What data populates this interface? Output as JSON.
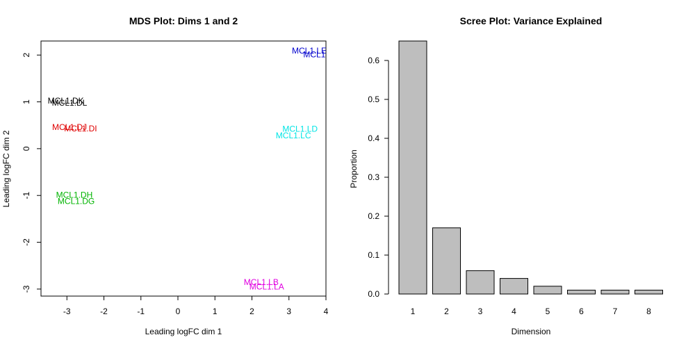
{
  "chart_data": [
    {
      "type": "scatter",
      "title": "MDS Plot: Dims 1 and 2",
      "xlabel": "Leading logFC dim 1",
      "ylabel": "Leading logFC dim 2",
      "xlim": [
        -3.7,
        4.0
      ],
      "ylim": [
        -3.15,
        2.3
      ],
      "xticks": [
        -3,
        -2,
        -1,
        0,
        1,
        2,
        3,
        4
      ],
      "yticks": [
        -3,
        -2,
        -1,
        0,
        1,
        2
      ],
      "grid": false,
      "legend": "none",
      "points": [
        {
          "label": "MCL1.LE",
          "x": 3.55,
          "y": 2.09,
          "color": "#0000CD"
        },
        {
          "label": "MCL1.LF",
          "x": 3.85,
          "y": 2.01,
          "color": "#0000CD"
        },
        {
          "label": "MCL1.DK",
          "x": -3.03,
          "y": 1.02,
          "color": "#000000"
        },
        {
          "label": "MCL1.DL",
          "x": -2.93,
          "y": 0.98,
          "color": "#000000"
        },
        {
          "label": "MCL1.DJ",
          "x": -2.93,
          "y": 0.46,
          "color": "#DF0000"
        },
        {
          "label": "MCL1.DI",
          "x": -2.63,
          "y": 0.43,
          "color": "#DF0000"
        },
        {
          "label": "MCL1.LD",
          "x": 3.3,
          "y": 0.42,
          "color": "#00E5E5"
        },
        {
          "label": "MCL1.LC",
          "x": 3.12,
          "y": 0.28,
          "color": "#00E5E5"
        },
        {
          "label": "MCL1.DH",
          "x": -2.8,
          "y": -0.99,
          "color": "#00B400"
        },
        {
          "label": "MCL1.DG",
          "x": -2.75,
          "y": -1.12,
          "color": "#00B400"
        },
        {
          "label": "MCL1.LB",
          "x": 2.25,
          "y": -2.85,
          "color": "#E000E0"
        },
        {
          "label": "MCL1.LA",
          "x": 2.4,
          "y": -2.95,
          "color": "#E000E0"
        }
      ]
    },
    {
      "type": "bar",
      "title": "Scree Plot: Variance Explained",
      "xlabel": "Dimension",
      "ylabel": "Proportion",
      "categories": [
        "1",
        "2",
        "3",
        "4",
        "5",
        "6",
        "7",
        "8"
      ],
      "values": [
        0.65,
        0.17,
        0.06,
        0.04,
        0.02,
        0.01,
        0.01,
        0.01
      ],
      "ylim": [
        0,
        0.65
      ],
      "yticks": [
        "0.0",
        "0.1",
        "0.2",
        "0.3",
        "0.4",
        "0.5",
        "0.6"
      ],
      "bar_color": "#BEBEBE",
      "grid": false,
      "legend": "none"
    }
  ]
}
